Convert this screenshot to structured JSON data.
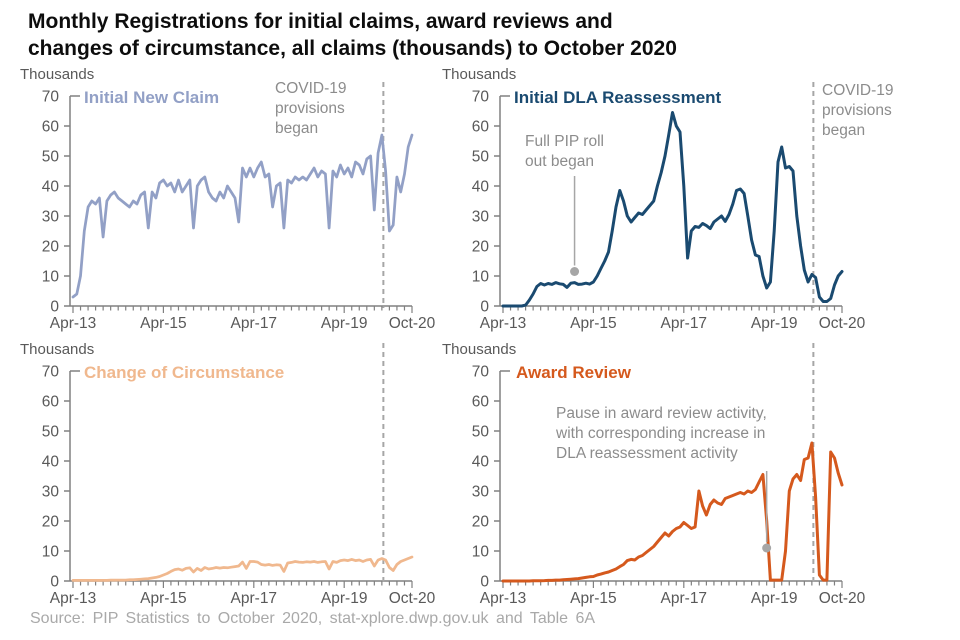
{
  "page_title": {
    "line1": "Monthly Registrations for initial claims, award reviews and",
    "line2": "changes of circumstance, all claims (thousands) to October 2020"
  },
  "source_note": "Source: PIP Statistics to October 2020, stat-xplore.dwp.gov.uk and Table 6A",
  "axis": {
    "unit_label": "Thousands",
    "ylim": [
      0,
      70
    ],
    "yticks": [
      0,
      10,
      20,
      30,
      40,
      50,
      60,
      70
    ],
    "xtick_labels": [
      "Apr-13",
      "Apr-15",
      "Apr-17",
      "Apr-19",
      "Oct-20"
    ],
    "xtick_months": [
      0,
      24,
      48,
      72,
      90
    ],
    "minor_tick_every_months": 2,
    "n_months": 91,
    "grid": "off"
  },
  "covid_line": {
    "month_index": 82.4,
    "label": "COVID-19\nprovisions\nbegan",
    "color": "#a6a6a6"
  },
  "annotation_color": "#8c8c8c",
  "chart_data": [
    {
      "type": "line",
      "title": "Initial New Claim",
      "color": "#92a0c6",
      "x_start": "Apr-13",
      "x_end": "Oct-20",
      "frequency": "monthly",
      "unit": "thousands",
      "values": [
        3,
        4,
        10,
        25,
        33,
        35,
        34,
        36,
        23,
        35,
        37,
        38,
        36,
        35,
        34,
        33,
        35,
        34,
        37,
        38,
        26,
        38,
        36,
        41,
        42,
        40,
        41,
        38,
        42,
        38,
        40,
        42,
        26,
        40,
        42,
        43,
        38,
        36,
        35,
        38,
        36,
        40,
        38,
        36,
        28,
        46,
        43,
        46,
        43,
        46,
        48,
        43,
        44,
        33,
        40,
        41,
        26,
        42,
        41,
        43,
        42,
        43,
        42,
        44,
        46,
        43,
        45,
        44,
        26,
        45,
        43,
        47,
        44,
        46,
        43,
        48,
        47,
        44,
        49,
        50,
        32,
        51,
        57,
        45,
        25,
        27,
        43,
        38,
        44,
        53,
        57
      ]
    },
    {
      "type": "line",
      "title": "Initial DLA Reassessment",
      "color": "#1a4a70",
      "x_start": "Apr-13",
      "x_end": "Oct-20",
      "frequency": "monthly",
      "unit": "thousands",
      "values": [
        0,
        0,
        0,
        0,
        0,
        0,
        0.3,
        2,
        4,
        6.5,
        7.5,
        7,
        7.5,
        7.2,
        7.8,
        7.4,
        7.2,
        6.2,
        7.6,
        7.8,
        7.2,
        7.3,
        7.6,
        7.3,
        8,
        10,
        12.5,
        15,
        18,
        25,
        33,
        38.5,
        35,
        30,
        28,
        29.5,
        31,
        30.5,
        32,
        33.5,
        35,
        40,
        44.5,
        50,
        57,
        64.5,
        60,
        58,
        40,
        16,
        25,
        26.5,
        26.2,
        27.5,
        26.8,
        25.8,
        28,
        29,
        30,
        28.2,
        30.5,
        34,
        38.5,
        39,
        37.5,
        30,
        22,
        17,
        16.5,
        10,
        6,
        8,
        25,
        48,
        53,
        46,
        46.5,
        45,
        30,
        20,
        12,
        8,
        10.5,
        9.5,
        3,
        1.5,
        1.5,
        2.5,
        7,
        10,
        11.5
      ],
      "dot_annotation": {
        "text": "Full PIP roll\nout began",
        "month_index": 19,
        "month_label": "Nov-14",
        "value": 11.5
      }
    },
    {
      "type": "line",
      "title": "Change of Circumstance",
      "color": "#f0b88e",
      "x_start": "Apr-13",
      "x_end": "Oct-20",
      "frequency": "monthly",
      "unit": "thousands",
      "values": [
        0.2,
        0.2,
        0.2,
        0.2,
        0.2,
        0.2,
        0.2,
        0.2,
        0.2,
        0.2,
        0.3,
        0.3,
        0.3,
        0.3,
        0.3,
        0.4,
        0.4,
        0.5,
        0.6,
        0.7,
        0.8,
        1,
        1.2,
        1.5,
        2,
        2.5,
        3.2,
        3.8,
        4,
        3.6,
        4.2,
        4.4,
        3,
        4.2,
        3.5,
        4.5,
        4,
        4.2,
        4.5,
        4.3,
        4.5,
        4.4,
        4.6,
        4.8,
        5,
        6.3,
        4.2,
        6.5,
        6.5,
        6.3,
        5.5,
        5.3,
        5.5,
        5.2,
        5.4,
        5.3,
        3.2,
        6,
        6.2,
        6.5,
        6.3,
        6.2,
        6.4,
        6.3,
        6.5,
        6.2,
        6.4,
        6.5,
        4,
        6.5,
        6.2,
        6.8,
        7,
        6.8,
        7.2,
        6.8,
        7,
        6.5,
        7,
        7.2,
        5,
        7,
        7.5,
        7,
        4.5,
        3.5,
        5.5,
        6.5,
        7,
        7.5,
        8
      ]
    },
    {
      "type": "line",
      "title": "Award Review",
      "color": "#d5591d",
      "x_start": "Apr-13",
      "x_end": "Oct-20",
      "frequency": "monthly",
      "unit": "thousands",
      "values": [
        0,
        0,
        0,
        0,
        0,
        0,
        0,
        0,
        0.1,
        0.1,
        0.1,
        0.15,
        0.2,
        0.2,
        0.3,
        0.3,
        0.4,
        0.5,
        0.6,
        0.7,
        0.8,
        1,
        1.2,
        1.4,
        1.5,
        2,
        2.3,
        2.7,
        3,
        3.5,
        4,
        4.8,
        5.5,
        6.8,
        7.2,
        7,
        8,
        8.5,
        9.5,
        10.5,
        11.5,
        13,
        14.5,
        16,
        15,
        16.5,
        17.5,
        18,
        19.5,
        18.5,
        17.5,
        18,
        30,
        25,
        22,
        25.5,
        27,
        26,
        25.5,
        27.5,
        28,
        28.5,
        29,
        29.5,
        29,
        30,
        29.5,
        30.5,
        33,
        35.5,
        20,
        0.3,
        0.3,
        0.3,
        0.3,
        10,
        30,
        34,
        35.5,
        33.5,
        40.5,
        41,
        46,
        28,
        2,
        0.3,
        0.3,
        43,
        41,
        36,
        32
      ],
      "dot_annotation": {
        "text": "Pause in award review activity,\nwith corresponding increase in\nDLA reassessment activity",
        "month_index": 70,
        "month_label": "Feb-19",
        "value": 11
      }
    }
  ]
}
